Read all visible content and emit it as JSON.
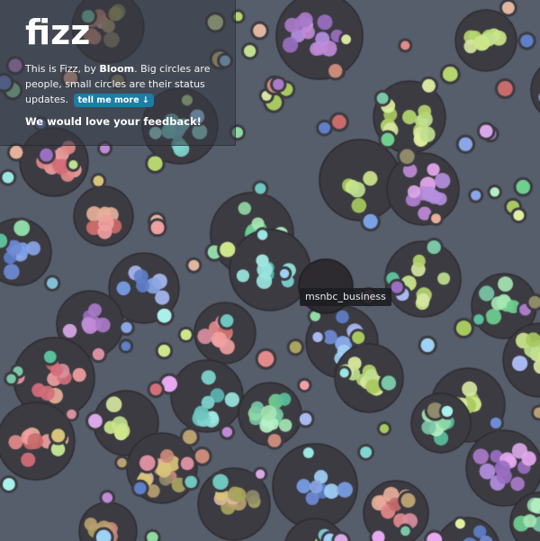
{
  "app": {
    "logo": "fizz",
    "intro_prefix": "This is Fizz, by ",
    "brand": "Bloom",
    "intro_suffix": ". Big circles are people, small circles are their status updates.",
    "tell_more_button": "tell me more ↓",
    "feedback": "We would love your feedback!"
  },
  "tooltip": {
    "label": "msnbc_business"
  },
  "colors": {
    "background": "#565d6b",
    "person_circle": "#3b3a40",
    "button": "#1c7ea6",
    "hover_circle": "#2e2b30"
  }
}
